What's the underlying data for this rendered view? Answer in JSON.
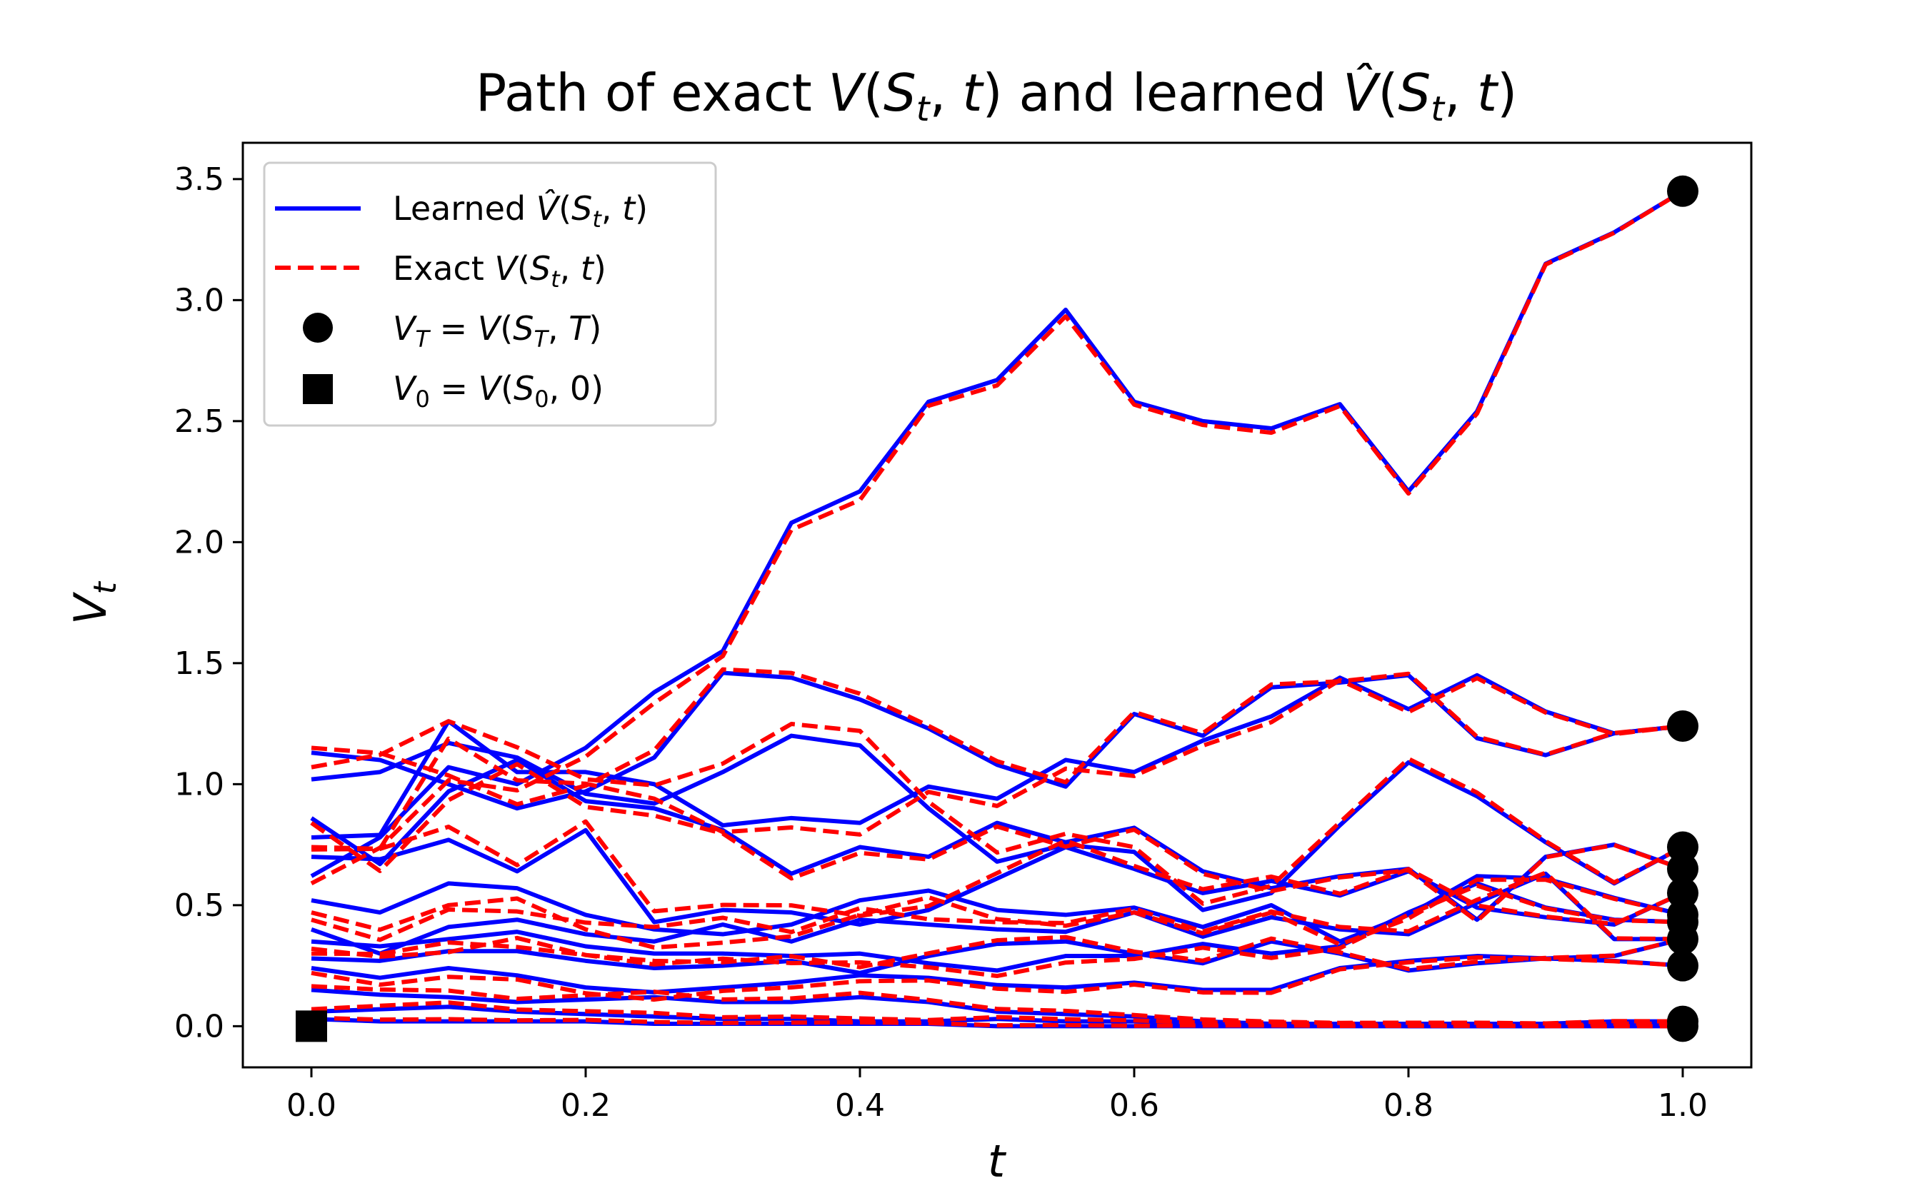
{
  "chart_data": {
    "type": "line",
    "title": "Path of exact V(S_t, t) and learned V̂(S_t, t)",
    "xlabel": "t",
    "ylabel": "V_t",
    "xlim": [
      -0.05,
      1.05
    ],
    "ylim": [
      -0.17,
      3.65
    ],
    "x_ticks": [
      0.0,
      0.2,
      0.4,
      0.6,
      0.8,
      1.0
    ],
    "y_ticks": [
      0.0,
      0.5,
      1.0,
      1.5,
      2.0,
      2.5,
      3.0,
      3.5
    ],
    "grid": false,
    "legend_position": "top-left",
    "legend": [
      {
        "label": "Learned V̂(S_t, t)",
        "style": "solid-line",
        "color": "#0000ff"
      },
      {
        "label": "Exact V(S_t, t)",
        "style": "dashed-line",
        "color": "#ff0000"
      },
      {
        "label": "V_T = V(S_T, T)",
        "style": "circle-marker",
        "color": "#000000"
      },
      {
        "label": "V_0 = V(S_0, 0)",
        "style": "square-marker",
        "color": "#000000"
      }
    ],
    "colors": {
      "learned": "#0000ff",
      "exact": "#ff0000",
      "markers": "#000000"
    },
    "x": [
      0.0,
      0.05,
      0.1,
      0.15,
      0.2,
      0.25,
      0.3,
      0.35,
      0.4,
      0.45,
      0.5,
      0.55,
      0.6,
      0.65,
      0.7,
      0.75,
      0.8,
      0.85,
      0.9,
      0.95,
      1.0
    ],
    "series": [
      {
        "values": [
          0.62,
          0.78,
          1.07,
          1.0,
          1.15,
          1.38,
          1.55,
          2.08,
          2.21,
          2.58,
          2.67,
          2.96,
          2.58,
          2.5,
          2.47,
          2.57,
          2.21,
          2.54,
          3.15,
          3.28,
          3.45
        ]
      },
      {
        "values": [
          1.13,
          1.1,
          1.0,
          0.9,
          0.97,
          1.11,
          1.46,
          1.44,
          1.35,
          1.23,
          1.08,
          0.99,
          1.29,
          1.2,
          1.4,
          1.42,
          1.45,
          1.19,
          1.12,
          1.21,
          1.24
        ]
      },
      {
        "values": [
          0.78,
          0.79,
          1.26,
          1.05,
          1.05,
          1.0,
          0.83,
          0.86,
          0.84,
          0.99,
          0.94,
          1.1,
          1.05,
          1.18,
          1.28,
          1.44,
          1.31,
          1.45,
          1.3,
          1.21,
          1.24
        ]
      },
      {
        "values": [
          1.02,
          1.05,
          1.17,
          1.11,
          0.96,
          0.92,
          1.05,
          1.2,
          1.16,
          0.9,
          0.68,
          0.75,
          0.72,
          0.48,
          0.55,
          0.83,
          1.09,
          0.95,
          0.76,
          0.59,
          0.74
        ]
      },
      {
        "values": [
          0.86,
          0.67,
          0.97,
          1.1,
          0.93,
          0.9,
          0.81,
          0.63,
          0.74,
          0.7,
          0.84,
          0.76,
          0.82,
          0.64,
          0.57,
          0.62,
          0.65,
          0.44,
          0.7,
          0.75,
          0.65
        ]
      },
      {
        "values": [
          0.7,
          0.69,
          0.77,
          0.64,
          0.81,
          0.43,
          0.48,
          0.47,
          0.42,
          0.48,
          0.61,
          0.74,
          0.65,
          0.55,
          0.6,
          0.54,
          0.64,
          0.49,
          0.45,
          0.42,
          0.55
        ]
      },
      {
        "values": [
          0.52,
          0.47,
          0.59,
          0.57,
          0.46,
          0.4,
          0.38,
          0.42,
          0.52,
          0.56,
          0.48,
          0.46,
          0.49,
          0.41,
          0.5,
          0.35,
          0.46,
          0.62,
          0.61,
          0.53,
          0.46
        ]
      },
      {
        "values": [
          0.4,
          0.3,
          0.41,
          0.44,
          0.38,
          0.35,
          0.42,
          0.35,
          0.44,
          0.42,
          0.4,
          0.39,
          0.47,
          0.37,
          0.45,
          0.4,
          0.38,
          0.51,
          0.63,
          0.36,
          0.36
        ]
      },
      {
        "values": [
          0.35,
          0.33,
          0.36,
          0.39,
          0.33,
          0.3,
          0.3,
          0.29,
          0.3,
          0.26,
          0.23,
          0.29,
          0.29,
          0.34,
          0.3,
          0.33,
          0.47,
          0.59,
          0.49,
          0.44,
          0.43
        ]
      },
      {
        "values": [
          0.28,
          0.27,
          0.31,
          0.31,
          0.27,
          0.24,
          0.25,
          0.27,
          0.22,
          0.29,
          0.34,
          0.35,
          0.3,
          0.26,
          0.35,
          0.3,
          0.23,
          0.26,
          0.28,
          0.29,
          0.36
        ]
      },
      {
        "values": [
          0.24,
          0.2,
          0.24,
          0.21,
          0.16,
          0.14,
          0.16,
          0.18,
          0.21,
          0.2,
          0.17,
          0.16,
          0.18,
          0.15,
          0.15,
          0.24,
          0.27,
          0.29,
          0.28,
          0.27,
          0.25
        ]
      },
      {
        "values": [
          0.15,
          0.13,
          0.12,
          0.1,
          0.11,
          0.12,
          0.1,
          0.1,
          0.12,
          0.1,
          0.06,
          0.05,
          0.04,
          0.02,
          0.01,
          0.01,
          0.01,
          0.01,
          0.01,
          0.02,
          0.02
        ]
      },
      {
        "values": [
          0.06,
          0.07,
          0.08,
          0.06,
          0.05,
          0.04,
          0.03,
          0.03,
          0.02,
          0.02,
          0.03,
          0.02,
          0.02,
          0.01,
          0.01,
          0.01,
          0.0,
          0.0,
          0.0,
          0.01,
          0.01
        ]
      },
      {
        "values": [
          0.03,
          0.02,
          0.02,
          0.02,
          0.02,
          0.01,
          0.01,
          0.01,
          0.01,
          0.01,
          0.0,
          0.0,
          0.0,
          0.0,
          0.0,
          0.0,
          0.0,
          0.0,
          0.0,
          0.0,
          0.0
        ]
      }
    ],
    "terminal_markers_y": [
      3.45,
      1.24,
      0.74,
      0.65,
      0.55,
      0.46,
      0.36,
      0.43,
      0.25,
      0.02,
      0.0
    ],
    "initial_marker_y": 0.0
  }
}
